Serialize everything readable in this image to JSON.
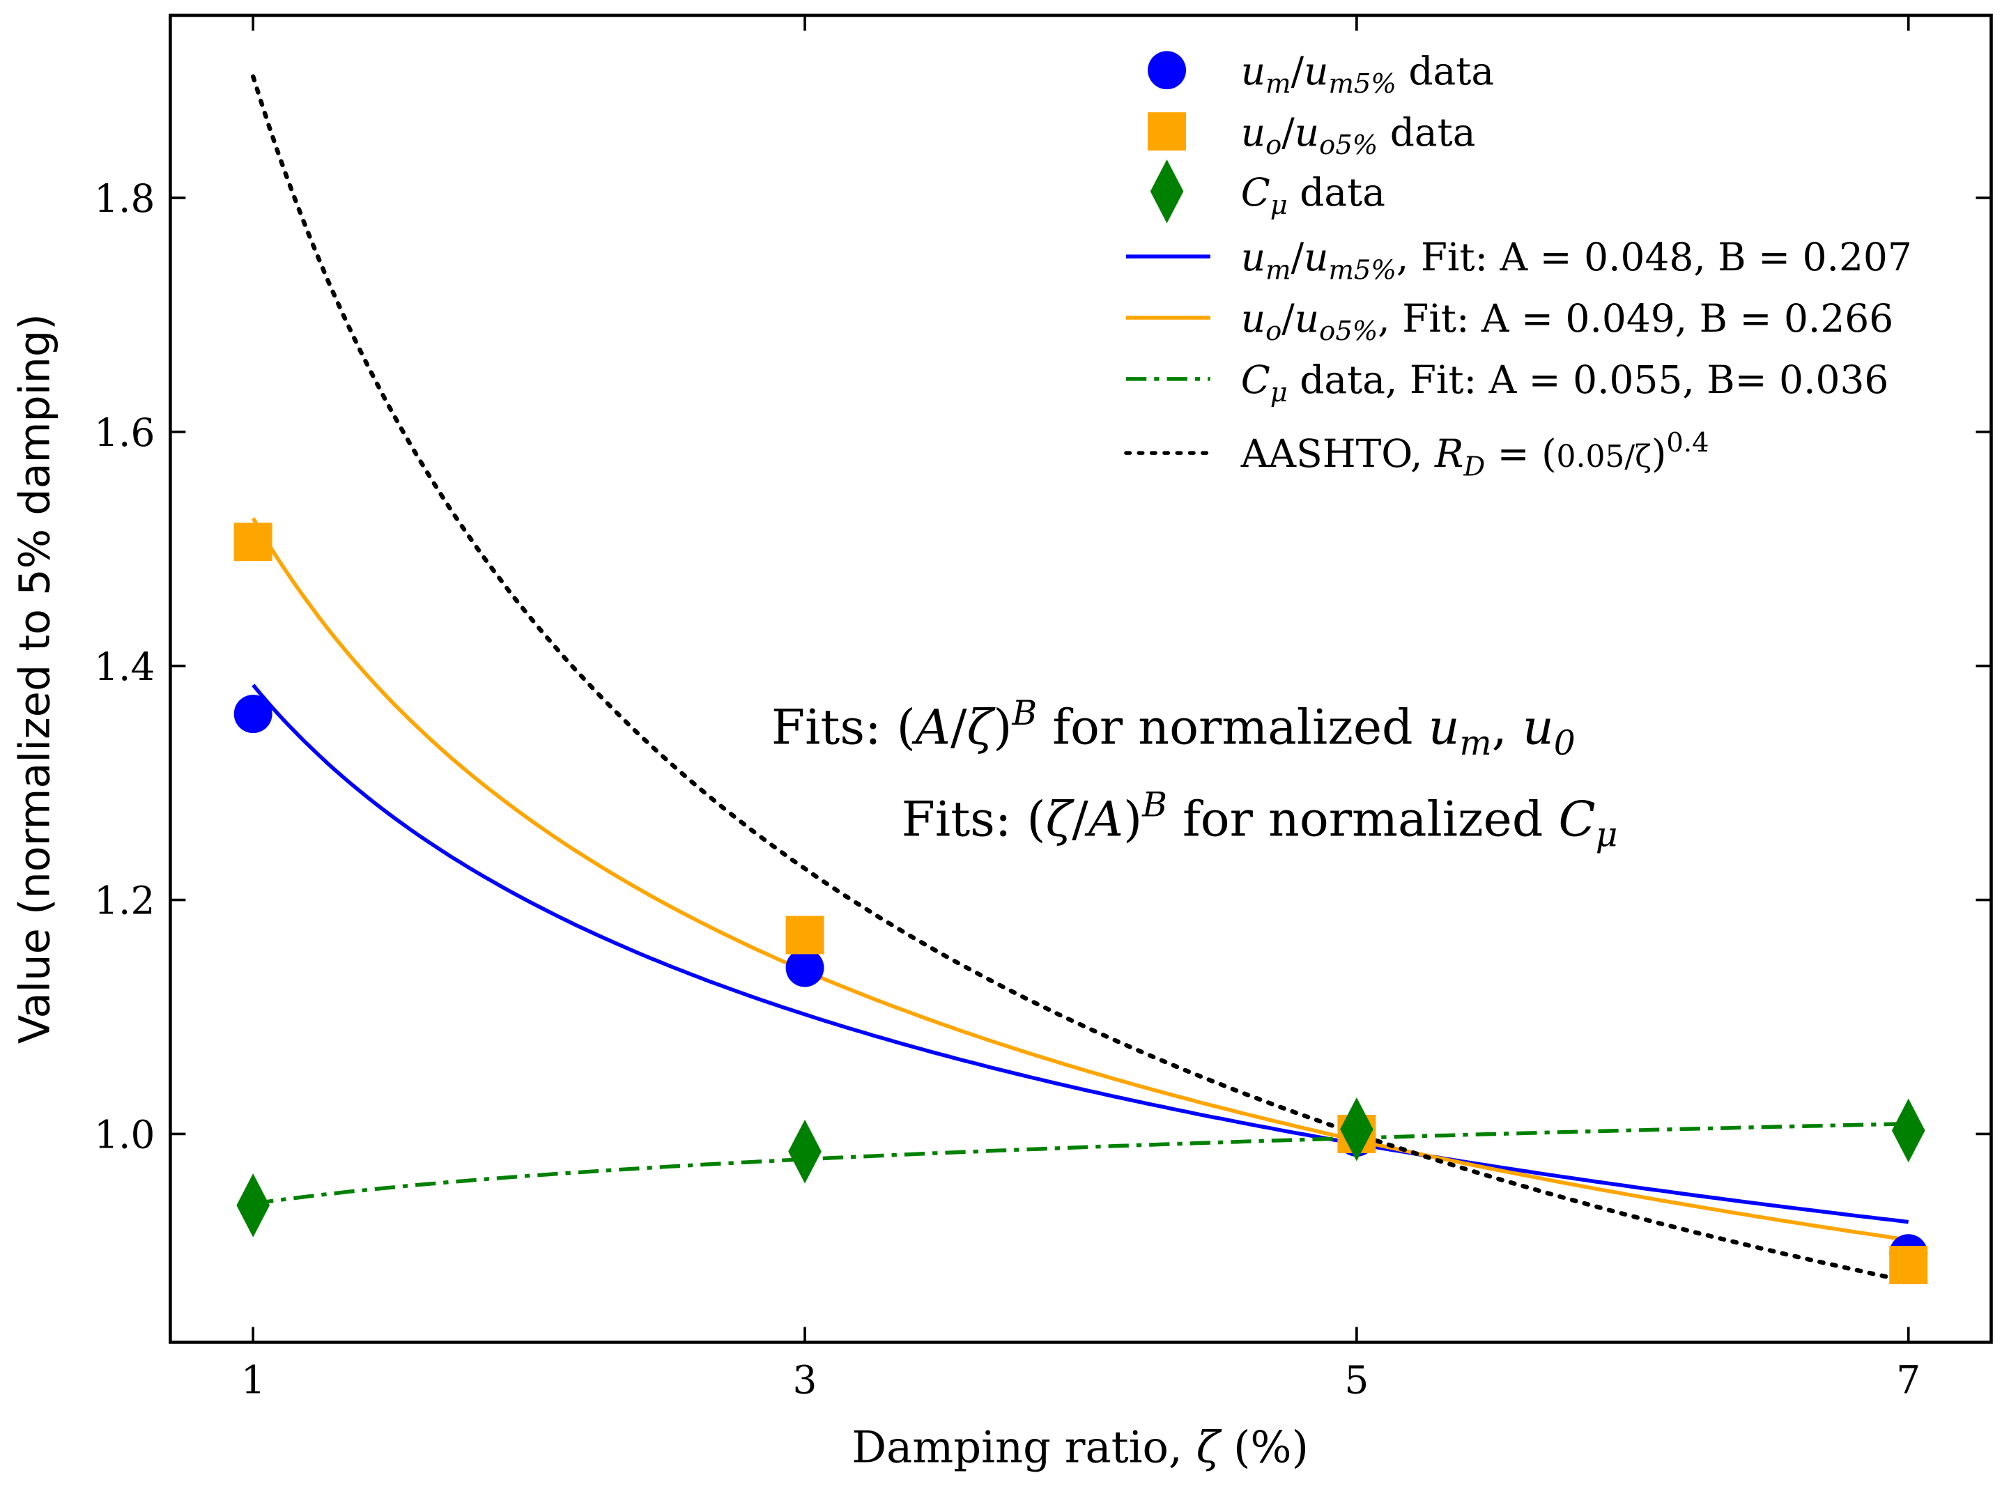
{
  "chart_data": {
    "type": "scatter",
    "xlabel": "Damping ratio, ζ (%)",
    "xlabel_parts": [
      {
        "t": "Damping ratio, "
      },
      {
        "t": "ζ",
        "i": true
      },
      {
        "t": " (%)"
      }
    ],
    "ylabel": "Value (normalized to 5% damping)",
    "xlim": [
      0.7,
      7.3
    ],
    "ylim": [
      0.822,
      1.956
    ],
    "xticks": [
      1,
      3,
      5,
      7
    ],
    "xtick_labels": [
      "1",
      "3",
      "5",
      "7"
    ],
    "yticks": [
      1.0,
      1.2,
      1.4,
      1.6,
      1.8
    ],
    "ytick_labels": [
      "1.0",
      "1.2",
      "1.4",
      "1.6",
      "1.8"
    ],
    "grid": false,
    "legend_placement": "top-right",
    "x": [
      1,
      3,
      5,
      7
    ],
    "series": [
      {
        "name": "um/um5% data",
        "kind": "scatter",
        "marker": "circle",
        "color": "#0000ff",
        "values": [
          1.359,
          1.142,
          0.997,
          0.898
        ],
        "label_parts": [
          {
            "t": "u",
            "i": true
          },
          {
            "t": "m",
            "i": true,
            "s": "sub"
          },
          {
            "t": "/"
          },
          {
            "t": "u",
            "i": true
          },
          {
            "t": "m5%",
            "i": true,
            "s": "sub"
          },
          {
            "t": " data"
          }
        ]
      },
      {
        "name": "uo/uo5% data",
        "kind": "scatter",
        "marker": "square",
        "color": "#ffa500",
        "values": [
          1.506,
          1.17,
          1.0,
          0.888
        ],
        "label_parts": [
          {
            "t": "u",
            "i": true
          },
          {
            "t": "o",
            "i": true,
            "s": "sub"
          },
          {
            "t": "/"
          },
          {
            "t": "u",
            "i": true
          },
          {
            "t": "o5%",
            "i": true,
            "s": "sub"
          },
          {
            "t": " data"
          }
        ]
      },
      {
        "name": "Cμ data",
        "kind": "scatter",
        "marker": "diamond",
        "color": "#008000",
        "values": [
          0.939,
          0.985,
          1.004,
          1.003
        ],
        "label_parts": [
          {
            "t": "C",
            "i": true
          },
          {
            "t": "μ",
            "i": true,
            "s": "sub"
          },
          {
            "t": " data"
          }
        ]
      },
      {
        "name": "um/um5%, Fit: A = 0.048, B = 0.207",
        "kind": "fit",
        "form": "A_over_z",
        "A": 0.048,
        "B": 0.207,
        "color": "#0000ff",
        "dash": "",
        "label_parts": [
          {
            "t": "u",
            "i": true
          },
          {
            "t": "m",
            "i": true,
            "s": "sub"
          },
          {
            "t": "/"
          },
          {
            "t": "u",
            "i": true
          },
          {
            "t": "m5%",
            "i": true,
            "s": "sub"
          },
          {
            "t": ", Fit: A = 0.048, B = 0.207"
          }
        ]
      },
      {
        "name": "uo/uo5%, Fit: A = 0.049, B = 0.266",
        "kind": "fit",
        "form": "A_over_z",
        "A": 0.049,
        "B": 0.266,
        "color": "#ffa500",
        "dash": "",
        "label_parts": [
          {
            "t": "u",
            "i": true
          },
          {
            "t": "o",
            "i": true,
            "s": "sub"
          },
          {
            "t": "/"
          },
          {
            "t": "u",
            "i": true
          },
          {
            "t": "o5%",
            "i": true,
            "s": "sub"
          },
          {
            "t": ", Fit: A = 0.049, B = 0.266"
          }
        ]
      },
      {
        "name": "Cμ data, Fit: A = 0.055, B= 0.036",
        "kind": "fit",
        "form": "z_over_A",
        "A": 0.055,
        "B": 0.036,
        "color": "#008000",
        "dash": "16 6 4 6",
        "label_parts": [
          {
            "t": "C",
            "i": true
          },
          {
            "t": "μ",
            "i": true,
            "s": "sub"
          },
          {
            "t": " data, Fit: A = 0.055, B= 0.036"
          }
        ]
      },
      {
        "name": "AASHTO, RD = (0.05/ζ)^0.4",
        "kind": "fit",
        "form": "A_over_z",
        "A": 0.05,
        "B": 0.4,
        "color": "#000000",
        "dash": "3 7",
        "label_parts": [
          {
            "t": "AASHTO, "
          },
          {
            "t": "R",
            "i": true
          },
          {
            "t": "D",
            "i": true,
            "s": "sub"
          },
          {
            "t": " = ("
          },
          {
            "t": "0.05/ζ",
            "s": "frac"
          },
          {
            "t": ")"
          },
          {
            "t": "0.4",
            "s": "sup"
          }
        ]
      }
    ],
    "annotations": [
      {
        "text": "Fits: (A/ζ)^B for normalized um, u0",
        "parts": [
          {
            "t": "Fits: ("
          },
          {
            "t": "A",
            "i": true
          },
          {
            "t": "/"
          },
          {
            "t": "ζ",
            "i": true
          },
          {
            "t": ")"
          },
          {
            "t": "B",
            "i": true,
            "s": "sup"
          },
          {
            "t": " for normalized "
          },
          {
            "t": "u",
            "i": true
          },
          {
            "t": "m",
            "i": true,
            "s": "sub"
          },
          {
            "t": ", "
          },
          {
            "t": "u",
            "i": true
          },
          {
            "t": "0",
            "i": true,
            "s": "sub"
          }
        ]
      },
      {
        "text": "Fits: (ζ/A)^B for normalized Cμ",
        "parts": [
          {
            "t": "Fits: ("
          },
          {
            "t": "ζ",
            "i": true
          },
          {
            "t": "/"
          },
          {
            "t": "A",
            "i": true
          },
          {
            "t": ")"
          },
          {
            "t": "B",
            "i": true,
            "s": "sup"
          },
          {
            "t": " for normalized "
          },
          {
            "t": "C",
            "i": true
          },
          {
            "t": "μ",
            "i": true,
            "s": "sub"
          }
        ]
      }
    ]
  }
}
